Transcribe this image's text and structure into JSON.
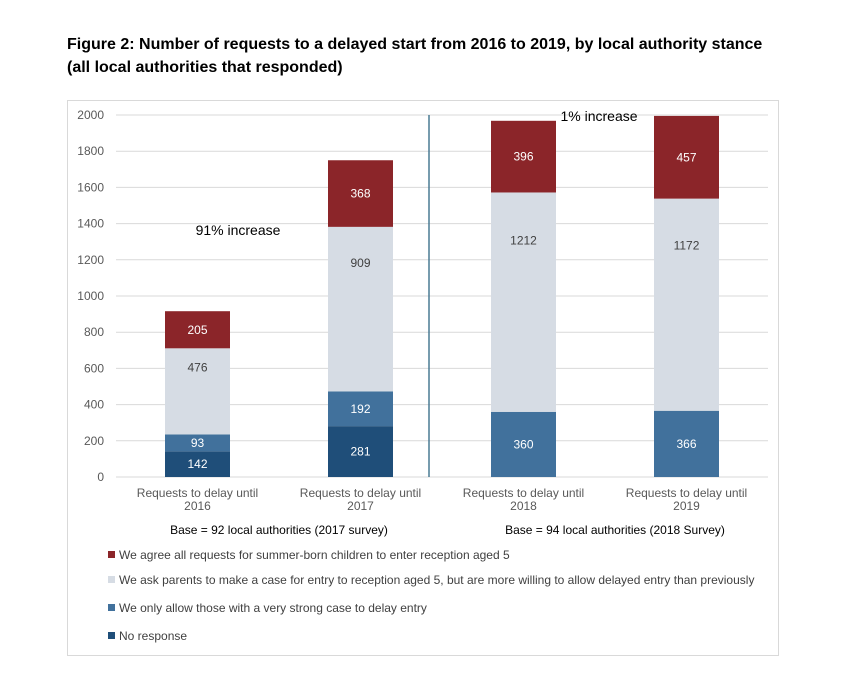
{
  "figure": {
    "title": "Figure 2: Number of requests to a delayed start from 2016 to 2019, by local authority stance (all local authorities that responded)"
  },
  "chart_data": {
    "type": "bar",
    "stacked": true,
    "categories": [
      [
        "Requests to delay until",
        "2016"
      ],
      [
        "Requests to delay until",
        "2017"
      ],
      [
        "Requests to delay until",
        "2018"
      ],
      [
        "Requests to delay until",
        "2019"
      ]
    ],
    "ylim": [
      0,
      2000
    ],
    "yticks": [
      0,
      200,
      400,
      600,
      800,
      1000,
      1200,
      1400,
      1600,
      1800,
      2000
    ],
    "grid": true,
    "series": [
      {
        "name": "No response",
        "color": "#1f4e79",
        "values": [
          142,
          281,
          0,
          0
        ]
      },
      {
        "name": "We only allow those with a very strong case to delay entry",
        "color": "#41719c",
        "values": [
          93,
          192,
          360,
          366
        ]
      },
      {
        "name": "We ask parents to make a case for entry to reception aged 5, but are more willing to allow delayed entry than previously",
        "color": "#d6dce4",
        "values": [
          476,
          909,
          1212,
          1172
        ]
      },
      {
        "name": "We agree all requests for summer-born children to enter reception aged 5",
        "color": "#8b2529",
        "values": [
          205,
          368,
          396,
          457
        ]
      }
    ],
    "annotations": [
      {
        "text": "91% increase",
        "x_between": [
          0,
          1
        ],
        "y": 1360
      },
      {
        "text": "1% increase",
        "x_between": [
          2,
          3
        ],
        "y": 2000
      }
    ],
    "base_notes": [
      {
        "text": "Base = 92 local authorities (2017 survey)",
        "categories": [
          0,
          1
        ]
      },
      {
        "text": "Base = 94 local authorities (2018 Survey)",
        "categories": [
          2,
          3
        ]
      }
    ],
    "divider_after_category": 1,
    "legend_position": "bottom"
  },
  "colors": {
    "divider": "#4a7b94",
    "grid": "#d9d9d9",
    "tick_text": "#595959"
  }
}
